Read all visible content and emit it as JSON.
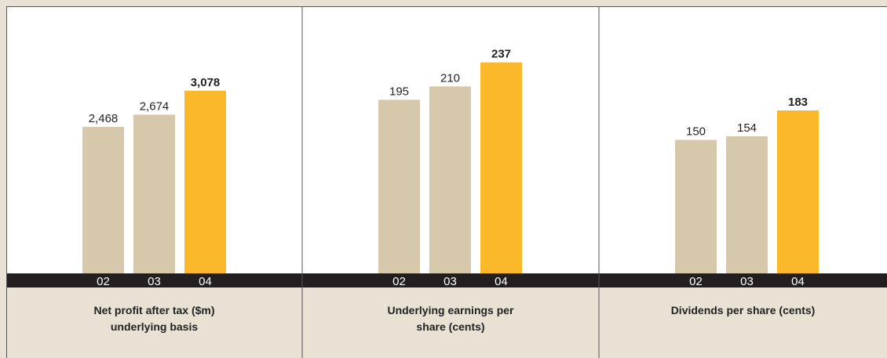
{
  "chart_data": [
    {
      "type": "bar",
      "title": "Net profit after tax ($m) underlying basis",
      "categories": [
        "02",
        "03",
        "04"
      ],
      "values": [
        2468,
        2674,
        3078
      ],
      "value_labels": [
        "2,468",
        "2,674",
        "3,078"
      ],
      "colors": [
        "#d6c8ab",
        "#d6c8ab",
        "#fbb829"
      ],
      "value_label_bold": [
        false,
        false,
        true
      ],
      "ylim": [
        0,
        4500
      ]
    },
    {
      "type": "bar",
      "title": "Underlying earnings per share (cents)",
      "categories": [
        "02",
        "03",
        "04"
      ],
      "values": [
        195,
        210,
        237
      ],
      "colors": [
        "#d6c8ab",
        "#d6c8ab",
        "#fbb829"
      ],
      "value_label_bold": [
        false,
        false,
        true
      ],
      "ylim": [
        0,
        300
      ]
    },
    {
      "type": "bar",
      "title": "Dividends per share (cents)",
      "categories": [
        "02",
        "03",
        "04"
      ],
      "values": [
        150,
        154,
        183
      ],
      "colors": [
        "#d6c8ab",
        "#d6c8ab",
        "#fbb829"
      ],
      "value_label_bold": [
        false,
        false,
        true
      ],
      "ylim": [
        0,
        300
      ]
    }
  ]
}
